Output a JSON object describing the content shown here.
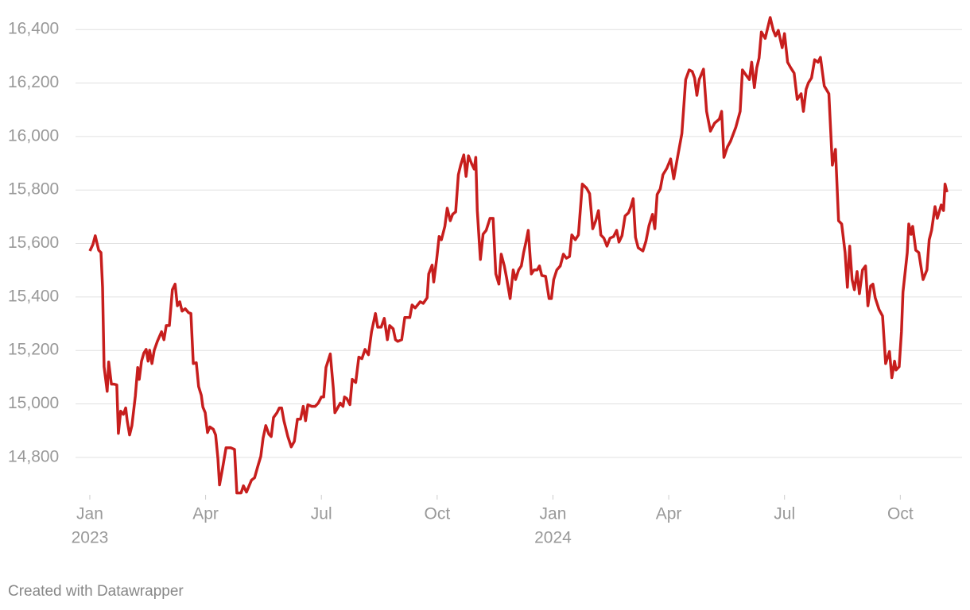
{
  "chart_data": {
    "type": "line",
    "color": "#c71e1d",
    "grid": true,
    "x": [
      0,
      0.08,
      0.14,
      0.23,
      0.29,
      0.33,
      0.37,
      0.45,
      0.49,
      0.56,
      0.62,
      0.7,
      0.74,
      0.8,
      0.87,
      0.93,
      0.97,
      1.03,
      1.09,
      1.18,
      1.24,
      1.28,
      1.34,
      1.4,
      1.46,
      1.51,
      1.55,
      1.61,
      1.67,
      1.75,
      1.86,
      1.92,
      1.98,
      2.06,
      2.14,
      2.21,
      2.27,
      2.33,
      2.39,
      2.47,
      2.56,
      2.62,
      2.68,
      2.76,
      2.82,
      2.89,
      2.93,
      2.99,
      3.05,
      3.11,
      3.2,
      3.26,
      3.32,
      3.36,
      3.44,
      3.53,
      3.65,
      3.75,
      3.81,
      3.92,
      3.98,
      4.06,
      4.19,
      4.27,
      4.35,
      4.43,
      4.49,
      4.56,
      4.64,
      4.7,
      4.76,
      4.85,
      4.91,
      4.97,
      5.03,
      5.13,
      5.22,
      5.3,
      5.38,
      5.46,
      5.53,
      5.59,
      5.65,
      5.75,
      5.84,
      5.92,
      6,
      6.06,
      6.12,
      6.23,
      6.31,
      6.35,
      6.41,
      6.49,
      6.56,
      6.6,
      6.66,
      6.74,
      6.8,
      6.89,
      6.97,
      7.05,
      7.13,
      7.22,
      7.3,
      7.4,
      7.46,
      7.55,
      7.63,
      7.71,
      7.77,
      7.86,
      7.92,
      7.98,
      8.08,
      8.16,
      8.29,
      8.35,
      8.43,
      8.56,
      8.64,
      8.74,
      8.78,
      8.87,
      8.91,
      8.99,
      9.05,
      9.11,
      9.2,
      9.26,
      9.34,
      9.4,
      9.48,
      9.55,
      9.61,
      9.69,
      9.75,
      9.81,
      9.9,
      9.96,
      10,
      10.04,
      10.12,
      10.19,
      10.27,
      10.37,
      10.45,
      10.52,
      10.6,
      10.66,
      10.74,
      10.8,
      10.89,
      10.97,
      11.03,
      11.11,
      11.18,
      11.24,
      11.3,
      11.36,
      11.44,
      11.51,
      11.59,
      11.65,
      11.71,
      11.81,
      11.9,
      11.96,
      12.02,
      12.1,
      12.19,
      12.27,
      12.35,
      12.43,
      12.49,
      12.58,
      12.66,
      12.76,
      12.87,
      12.95,
      13.03,
      13.11,
      13.18,
      13.24,
      13.32,
      13.4,
      13.48,
      13.57,
      13.65,
      13.71,
      13.79,
      13.87,
      13.96,
      14.02,
      14.08,
      14.14,
      14.21,
      14.33,
      14.41,
      14.49,
      14.58,
      14.64,
      14.7,
      14.78,
      14.85,
      14.95,
      15.05,
      15.13,
      15.22,
      15.34,
      15.44,
      15.53,
      15.61,
      15.67,
      15.73,
      15.79,
      15.9,
      15.98,
      16.08,
      16.19,
      16.31,
      16.37,
      16.43,
      16.52,
      16.6,
      16.74,
      16.85,
      16.91,
      17.01,
      17.09,
      17.15,
      17.22,
      17.28,
      17.34,
      17.4,
      17.5,
      17.63,
      17.71,
      17.77,
      17.84,
      17.94,
      18,
      18.08,
      18.16,
      18.25,
      18.33,
      18.43,
      18.49,
      18.56,
      18.62,
      18.7,
      18.78,
      18.87,
      18.93,
      19.03,
      19.15,
      19.24,
      19.32,
      19.4,
      19.48,
      19.57,
      19.63,
      19.69,
      19.75,
      19.81,
      19.88,
      19.94,
      20.02,
      20.1,
      20.16,
      20.23,
      20.29,
      20.35,
      20.45,
      20.54,
      20.62,
      20.72,
      20.78,
      20.85,
      20.89,
      20.97,
      21.03,
      21.07,
      21.18,
      21.22,
      21.28,
      21.32,
      21.4,
      21.48,
      21.55,
      21.59,
      21.69,
      21.75,
      21.81,
      21.9,
      21.96,
      22.06,
      22.12,
      22.16,
      22.21
    ],
    "values": [
      15572,
      15596,
      15629,
      15575,
      15566,
      15436,
      15139,
      15047,
      15157,
      15074,
      15074,
      15071,
      14890,
      14973,
      14961,
      14985,
      14937,
      14884,
      14919,
      15029,
      15136,
      15092,
      15160,
      15190,
      15204,
      15160,
      15201,
      15151,
      15201,
      15234,
      15270,
      15240,
      15293,
      15293,
      15427,
      15448,
      15367,
      15382,
      15347,
      15356,
      15341,
      15338,
      15151,
      15154,
      15065,
      15032,
      14988,
      14967,
      14893,
      14914,
      14905,
      14884,
      14795,
      14697,
      14759,
      14836,
      14836,
      14830,
      14667,
      14667,
      14694,
      14670,
      14715,
      14724,
      14765,
      14804,
      14872,
      14919,
      14887,
      14878,
      14949,
      14967,
      14985,
      14985,
      14937,
      14878,
      14839,
      14860,
      14943,
      14943,
      14991,
      14937,
      14997,
      14991,
      14991,
      15003,
      15026,
      15026,
      15136,
      15187,
      15056,
      14967,
      14982,
      15003,
      14991,
      15026,
      15020,
      14997,
      15092,
      15080,
      15175,
      15169,
      15204,
      15184,
      15270,
      15338,
      15287,
      15287,
      15320,
      15240,
      15293,
      15281,
      15240,
      15234,
      15240,
      15323,
      15323,
      15370,
      15359,
      15382,
      15376,
      15397,
      15486,
      15519,
      15456,
      15543,
      15626,
      15614,
      15664,
      15732,
      15685,
      15709,
      15718,
      15857,
      15893,
      15931,
      15851,
      15928,
      15896,
      15878,
      15922,
      15723,
      15540,
      15635,
      15649,
      15694,
      15694,
      15486,
      15448,
      15560,
      15516,
      15471,
      15394,
      15501,
      15465,
      15501,
      15516,
      15566,
      15605,
      15649,
      15486,
      15501,
      15501,
      15516,
      15480,
      15477,
      15394,
      15394,
      15465,
      15501,
      15516,
      15560,
      15545,
      15551,
      15632,
      15614,
      15632,
      15822,
      15807,
      15786,
      15655,
      15685,
      15723,
      15632,
      15620,
      15590,
      15620,
      15626,
      15649,
      15605,
      15629,
      15703,
      15715,
      15738,
      15768,
      15623,
      15584,
      15572,
      15608,
      15667,
      15709,
      15655,
      15783,
      15804,
      15857,
      15881,
      15916,
      15842,
      15916,
      16011,
      16213,
      16249,
      16243,
      16219,
      16154,
      16213,
      16252,
      16094,
      16020,
      16050,
      16065,
      16094,
      15922,
      15961,
      15982,
      16035,
      16094,
      16249,
      16228,
      16213,
      16278,
      16183,
      16257,
      16293,
      16391,
      16367,
      16445,
      16397,
      16376,
      16397,
      16332,
      16385,
      16278,
      16257,
      16237,
      16139,
      16160,
      16094,
      16177,
      16201,
      16219,
      16287,
      16278,
      16296,
      16189,
      16160,
      15893,
      15952,
      15685,
      15673,
      15566,
      15436,
      15590,
      15465,
      15427,
      15495,
      15412,
      15501,
      15516,
      15367,
      15441,
      15448,
      15397,
      15353,
      15329,
      15151,
      15196,
      15098,
      15160,
      15127,
      15139,
      15270,
      15418,
      15566,
      15673,
      15634,
      15664,
      15575,
      15566,
      15501,
      15465,
      15501,
      15614,
      15649,
      15738,
      15694,
      15744,
      15723,
      15822,
      15792
    ],
    "xlim": [
      -0.37,
      22.6
    ],
    "xticks": [
      {
        "value": 0,
        "label": "Jan"
      },
      {
        "value": 3,
        "label": "Apr"
      },
      {
        "value": 6,
        "label": "Jul"
      },
      {
        "value": 9,
        "label": "Oct"
      },
      {
        "value": 12,
        "label": "Jan"
      },
      {
        "value": 15,
        "label": "Apr"
      },
      {
        "value": 18,
        "label": "Jul"
      },
      {
        "value": 21,
        "label": "Oct"
      }
    ],
    "x_year_labels": [
      {
        "value": 0,
        "label": "2023"
      },
      {
        "value": 12,
        "label": "2024"
      }
    ],
    "ylim": [
      14660,
      16460
    ],
    "yticks": [
      {
        "value": 14800,
        "label": "14,800"
      },
      {
        "value": 15000,
        "label": "15,000"
      },
      {
        "value": 15200,
        "label": "15,200"
      },
      {
        "value": 15400,
        "label": "15,400"
      },
      {
        "value": 15600,
        "label": "15,600"
      },
      {
        "value": 15800,
        "label": "15,800"
      },
      {
        "value": 16000,
        "label": "16,000"
      },
      {
        "value": 16200,
        "label": "16,200"
      },
      {
        "value": 16400,
        "label": "16,400"
      }
    ],
    "footer": "Created with Datawrapper"
  }
}
